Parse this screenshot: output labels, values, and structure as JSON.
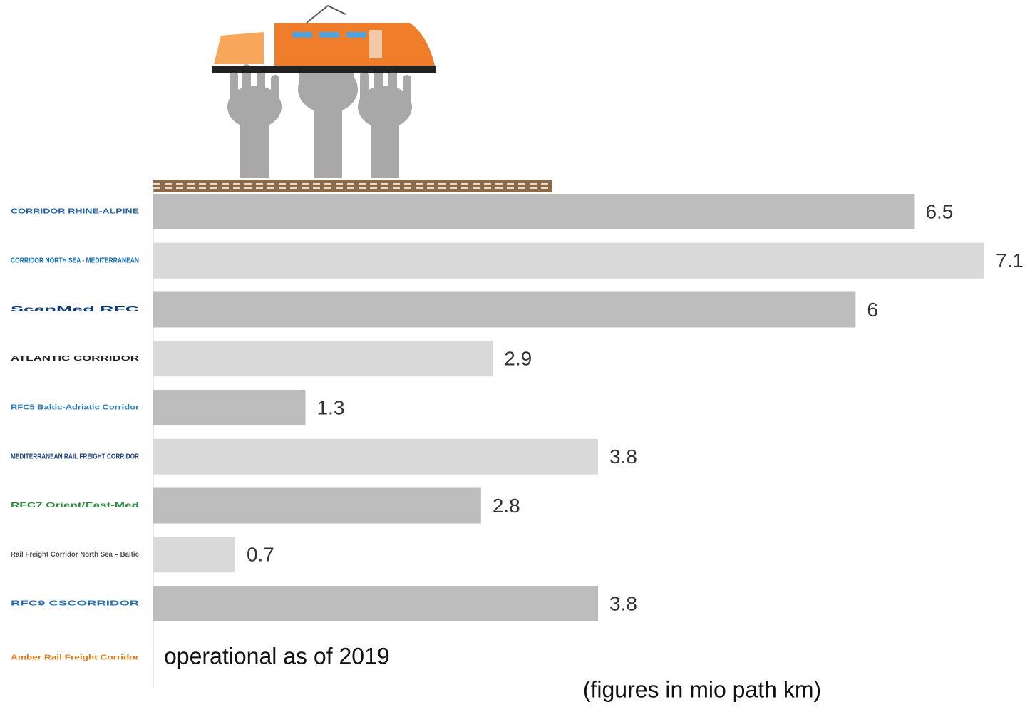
{
  "chart_data": {
    "type": "bar",
    "orientation": "horizontal",
    "categories": [
      "CORRIDOR RHINE-ALPINE",
      "CORRIDOR NORTH SEA - MEDITERRANEAN",
      "ScanMed RFC",
      "ATLANTIC CORRIDOR",
      "RFC5 Baltic-Adriatic Corridor",
      "MEDITERRANEAN RAIL FREIGHT CORRIDOR",
      "RFC7 Orient/East-Med",
      "Rail Freight Corridor North Sea – Baltic",
      "RFC9 CSCORRIDOR",
      "Amber Rail Freight Corridor"
    ],
    "values": [
      6.5,
      7.1,
      6,
      2.9,
      1.3,
      3.8,
      2.8,
      0.7,
      3.8,
      null
    ],
    "colors": [
      "#bdbdbd",
      "#d9d9d9",
      "#bdbdbd",
      "#d9d9d9",
      "#bdbdbd",
      "#d9d9d9",
      "#bdbdbd",
      "#d9d9d9",
      "#bdbdbd",
      "#d9d9d9"
    ],
    "xlim": [
      0,
      7.1
    ],
    "annotations": [
      "operational as of 2019",
      "(figures in mio path km)"
    ]
  }
}
